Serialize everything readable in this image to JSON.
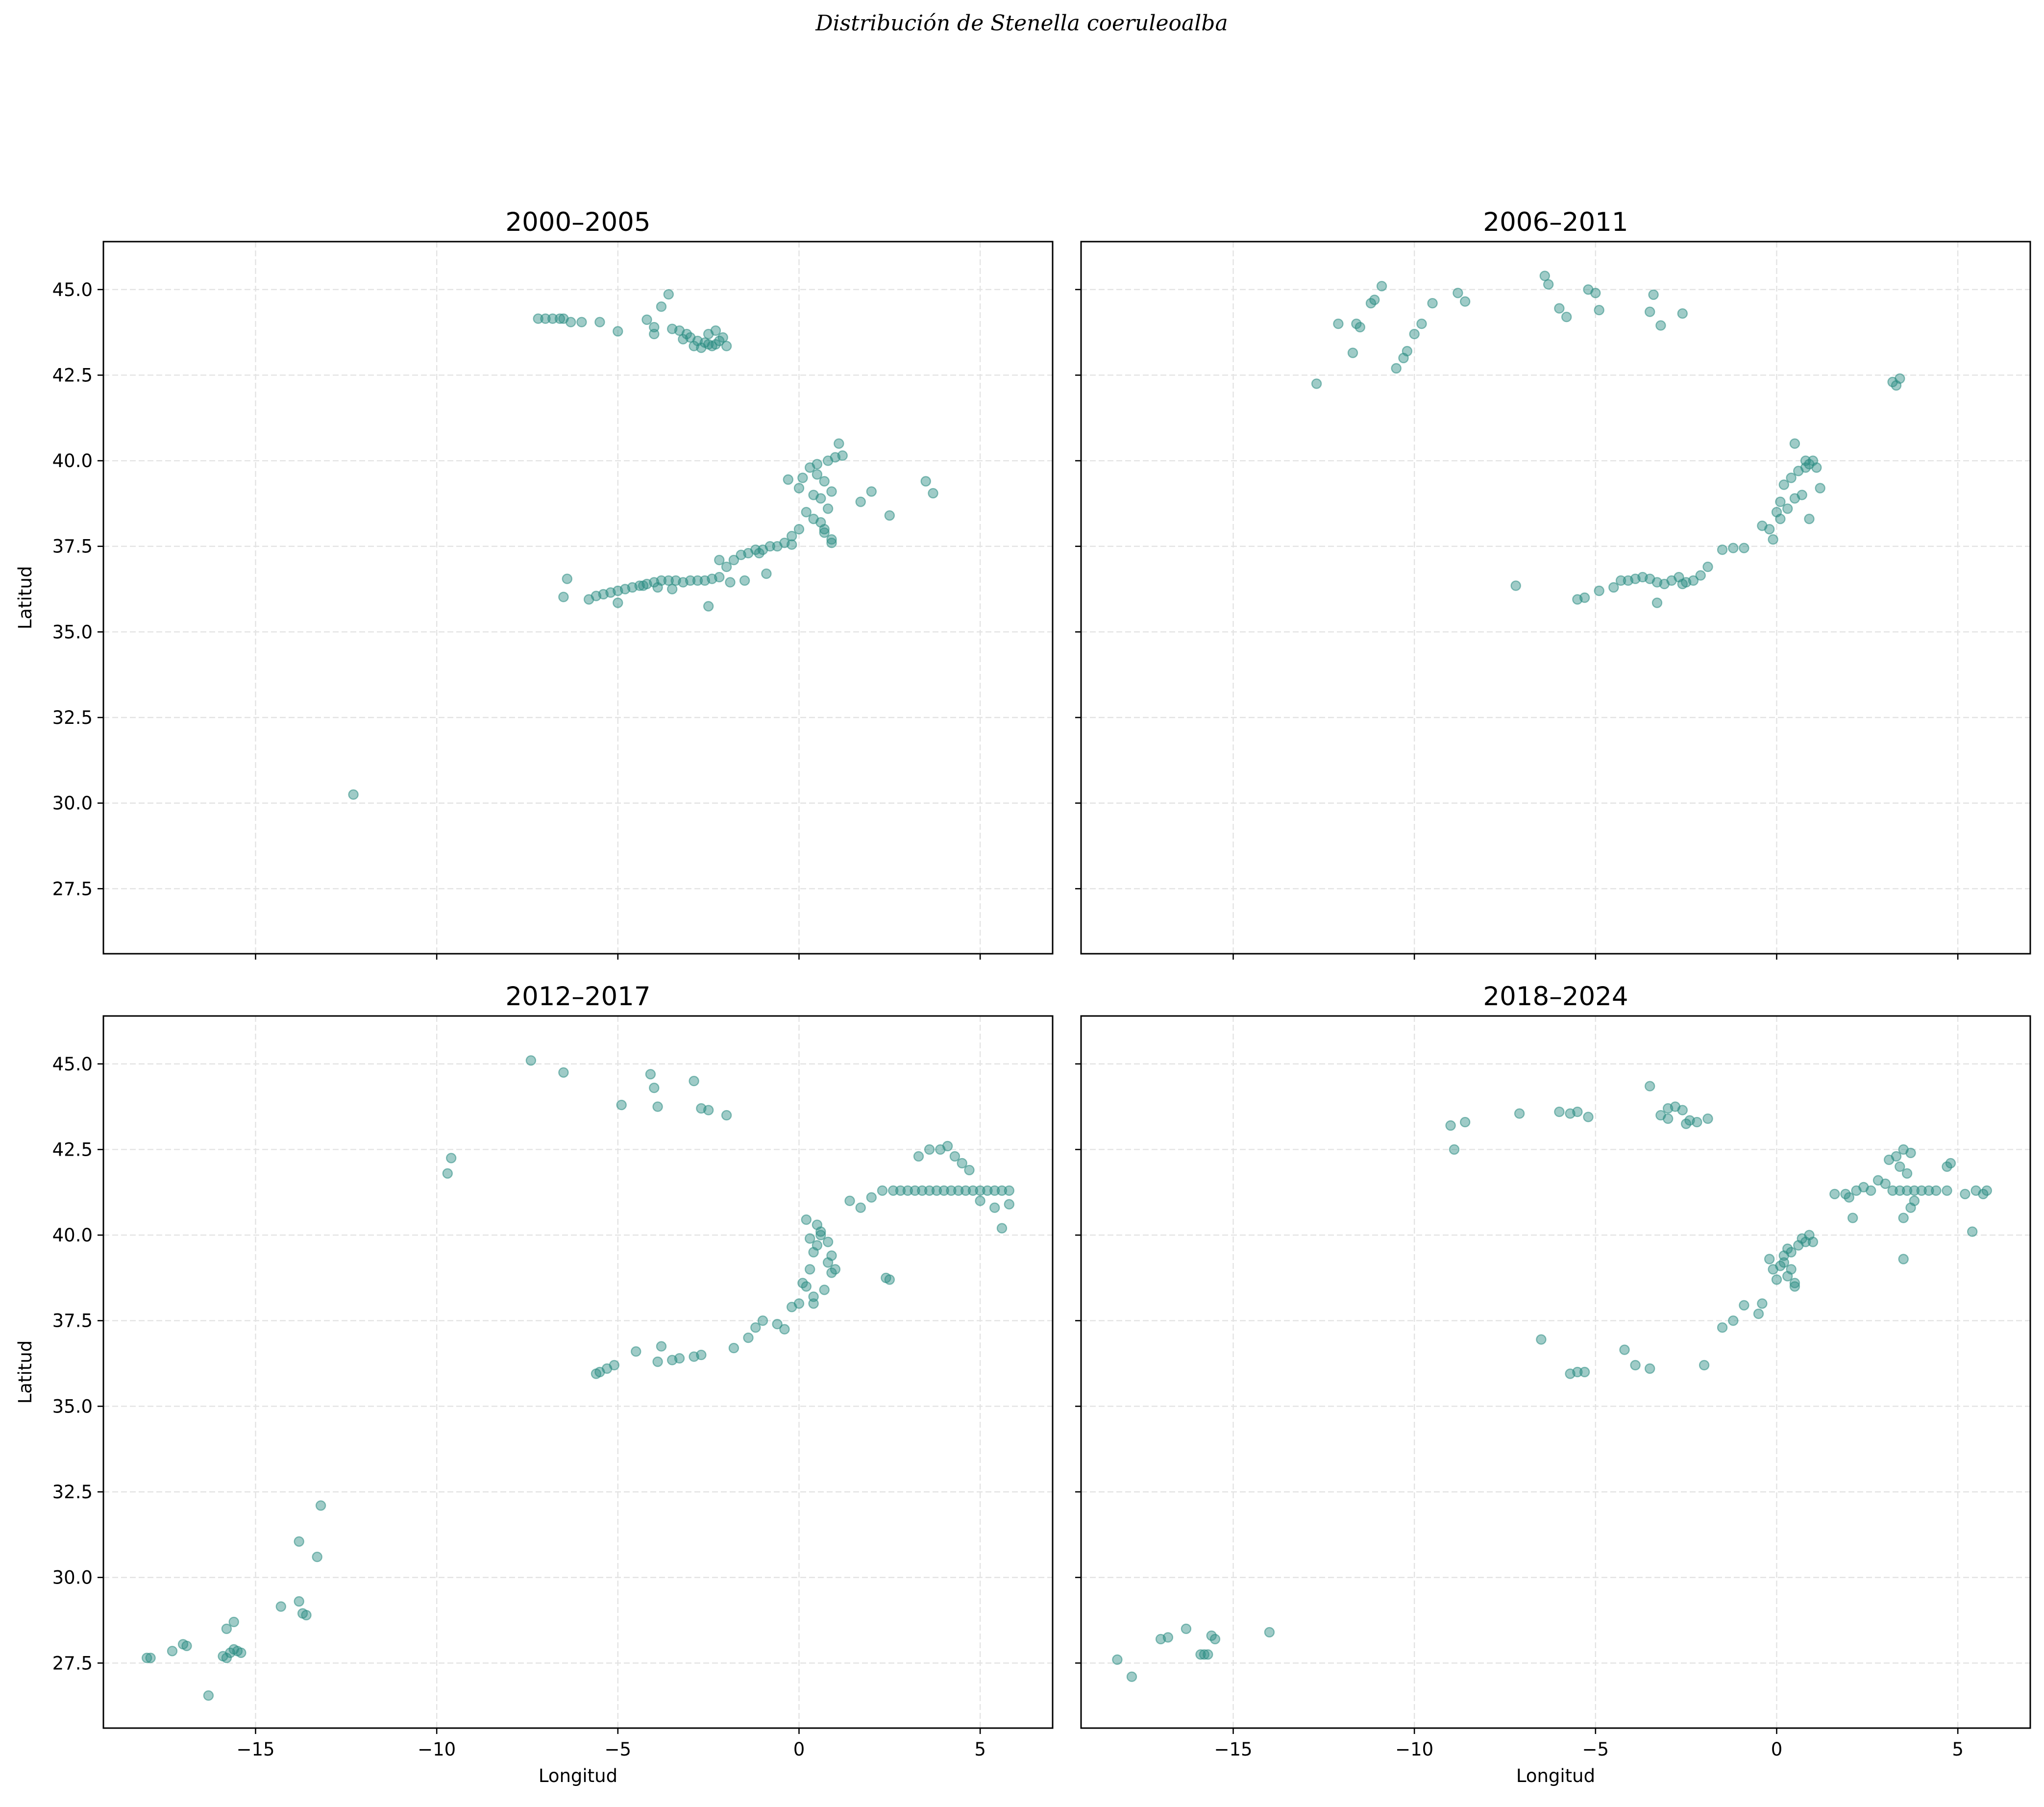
{
  "figure": {
    "title": "Distribución de Stenella coeruleoalba",
    "xlabel": "Longitud",
    "ylabel": "Latitud"
  },
  "colors": {
    "point": "#2a8c82",
    "point_opacity": 0.45,
    "grid": "#e3e3e3",
    "background": "#ffffff"
  },
  "chart_data": [
    {
      "type": "scatter",
      "title": "2000–2005",
      "xlim": [
        -19.2,
        7.0
      ],
      "ylim": [
        25.6,
        46.4
      ],
      "xticks": [
        -15,
        -10,
        -5,
        0,
        5
      ],
      "xtick_labels": [
        "−15",
        "−10",
        "−5",
        "0",
        "5"
      ],
      "yticks": [
        27.5,
        30.0,
        32.5,
        35.0,
        37.5,
        40.0,
        42.5,
        45.0
      ],
      "ytick_labels": [
        "27.5",
        "30.0",
        "32.5",
        "35.0",
        "37.5",
        "40.0",
        "42.5",
        "45.0"
      ],
      "grid": true,
      "x": [
        -7.2,
        -7.0,
        -6.8,
        -6.6,
        -6.5,
        -6.3,
        -6.0,
        -5.5,
        -5.0,
        -4.0,
        -3.6,
        -4.2,
        -3.8,
        -4.0,
        -3.5,
        -3.3,
        -3.1,
        -3.0,
        -2.8,
        -2.6,
        -2.5,
        -2.4,
        -2.3,
        -2.2,
        -2.1,
        -2.9,
        -2.7,
        -2.5,
        -2.3,
        -3.2,
        -2.0,
        -12.3,
        -6.4,
        -6.5,
        -5.8,
        -5.6,
        -5.4,
        -5.2,
        -5.0,
        -4.8,
        -4.6,
        -4.4,
        -4.2,
        -4.0,
        -3.8,
        -3.6,
        -3.4,
        -3.2,
        -3.0,
        -2.8,
        -2.6,
        -2.4,
        -2.2,
        -2.0,
        -1.8,
        -1.6,
        -1.4,
        -1.2,
        -1.0,
        -0.8,
        -0.6,
        -0.4,
        -0.2,
        0.0,
        0.2,
        0.4,
        -0.3,
        0.0,
        0.1,
        0.3,
        0.5,
        0.7,
        0.9,
        0.6,
        0.8,
        0.4,
        0.7,
        0.9,
        0.5,
        0.8,
        1.0,
        1.1,
        1.2,
        0.6,
        0.7,
        0.9,
        2.0,
        1.7,
        2.5,
        3.5,
        3.7,
        -2.5,
        -1.5,
        -1.9,
        -0.9,
        -0.2,
        -5.0,
        -3.5,
        -4.3,
        -3.9,
        -2.2,
        -1.1
      ],
      "y": [
        44.15,
        44.15,
        44.15,
        44.15,
        44.15,
        44.05,
        44.05,
        44.05,
        43.78,
        43.9,
        44.86,
        44.12,
        44.5,
        43.7,
        43.85,
        43.8,
        43.7,
        43.6,
        43.5,
        43.45,
        43.4,
        43.35,
        43.4,
        43.5,
        43.6,
        43.35,
        43.3,
        43.7,
        43.8,
        43.55,
        43.35,
        30.25,
        36.55,
        36.02,
        35.95,
        36.05,
        36.1,
        36.15,
        36.2,
        36.25,
        36.3,
        36.35,
        36.4,
        36.45,
        36.5,
        36.5,
        36.5,
        36.45,
        36.5,
        36.5,
        36.5,
        36.55,
        36.6,
        36.9,
        37.1,
        37.25,
        37.3,
        37.4,
        37.4,
        37.5,
        37.5,
        37.6,
        37.8,
        38.0,
        38.5,
        39.0,
        39.45,
        39.2,
        39.5,
        39.8,
        39.6,
        39.4,
        39.1,
        38.9,
        38.6,
        38.3,
        38.0,
        37.7,
        39.9,
        40.0,
        40.1,
        40.5,
        40.15,
        38.2,
        37.9,
        37.6,
        39.1,
        38.8,
        38.4,
        39.4,
        39.05,
        35.75,
        36.5,
        36.45,
        36.7,
        37.55,
        35.85,
        36.25,
        36.35,
        36.3,
        37.1,
        37.3
      ]
    },
    {
      "type": "scatter",
      "title": "2006–2011",
      "xlim": [
        -19.2,
        7.0
      ],
      "ylim": [
        25.6,
        46.4
      ],
      "xticks": [
        -15,
        -10,
        -5,
        0,
        5
      ],
      "xtick_labels": [
        "−15",
        "−10",
        "−5",
        "0",
        "5"
      ],
      "yticks": [
        27.5,
        30.0,
        32.5,
        35.0,
        37.5,
        40.0,
        42.5,
        45.0
      ],
      "ytick_labels": [
        "27.5",
        "30.0",
        "32.5",
        "35.0",
        "37.5",
        "40.0",
        "42.5",
        "45.0"
      ],
      "grid": true,
      "x": [
        -12.7,
        -12.1,
        -11.6,
        -11.5,
        -11.7,
        -11.2,
        -11.1,
        -10.9,
        -10.5,
        -10.3,
        -10.2,
        -10.0,
        -9.8,
        -9.5,
        -8.8,
        -8.6,
        -6.4,
        -6.3,
        -6.0,
        -5.8,
        -5.2,
        -5.0,
        -4.9,
        -3.5,
        -3.4,
        -3.2,
        -2.6,
        -7.2,
        -5.5,
        -5.3,
        -4.9,
        -4.5,
        -4.3,
        -4.1,
        -3.9,
        -3.7,
        -3.5,
        -3.3,
        -3.1,
        -2.9,
        -2.7,
        -2.5,
        -2.3,
        -2.1,
        -1.9,
        -3.3,
        -2.6,
        -1.5,
        -1.2,
        -0.9,
        -0.4,
        -0.2,
        0.0,
        0.1,
        0.2,
        0.4,
        0.6,
        0.8,
        0.9,
        1.0,
        1.2,
        0.5,
        0.7,
        0.3,
        0.1,
        -0.1,
        0.5,
        0.8,
        1.1,
        0.9,
        3.2,
        3.3,
        3.4
      ],
      "y": [
        42.25,
        44.0,
        44.0,
        43.9,
        43.15,
        44.6,
        44.7,
        45.1,
        42.7,
        43.0,
        43.2,
        43.7,
        44.0,
        44.6,
        44.9,
        44.65,
        45.4,
        45.15,
        44.45,
        44.2,
        45.0,
        44.9,
        44.4,
        44.35,
        44.85,
        43.95,
        44.3,
        36.35,
        35.95,
        36.0,
        36.2,
        36.3,
        36.5,
        36.5,
        36.55,
        36.6,
        36.55,
        36.45,
        36.4,
        36.5,
        36.6,
        36.45,
        36.5,
        36.65,
        36.9,
        35.85,
        36.4,
        37.4,
        37.45,
        37.45,
        38.1,
        38.0,
        38.5,
        38.8,
        39.3,
        39.5,
        39.7,
        39.8,
        39.9,
        40.0,
        39.2,
        38.9,
        39.0,
        38.6,
        38.3,
        37.7,
        40.5,
        40.0,
        39.8,
        38.3,
        42.3,
        42.2,
        42.4
      ]
    },
    {
      "type": "scatter",
      "title": "2012–2017",
      "xlim": [
        -19.2,
        7.0
      ],
      "ylim": [
        25.6,
        46.4
      ],
      "xticks": [
        -15,
        -10,
        -5,
        0,
        5
      ],
      "xtick_labels": [
        "−15",
        "−10",
        "−5",
        "0",
        "5"
      ],
      "yticks": [
        27.5,
        30.0,
        32.5,
        35.0,
        37.5,
        40.0,
        42.5,
        45.0
      ],
      "ytick_labels": [
        "27.5",
        "30.0",
        "32.5",
        "35.0",
        "37.5",
        "40.0",
        "42.5",
        "45.0"
      ],
      "grid": true,
      "x": [
        -18.0,
        -17.9,
        -17.3,
        -17.0,
        -16.9,
        -15.9,
        -15.8,
        -15.7,
        -15.6,
        -15.5,
        -15.4,
        -16.3,
        -15.8,
        -15.6,
        -13.7,
        -13.8,
        -13.8,
        -13.3,
        -13.2,
        -14.3,
        -13.6,
        -9.7,
        -9.6,
        -7.4,
        -6.5,
        -4.9,
        -4.1,
        -4.0,
        -3.9,
        -2.9,
        -2.7,
        -2.5,
        -2.0,
        -5.6,
        -5.5,
        -5.3,
        -5.1,
        -4.5,
        -3.9,
        -3.8,
        -3.5,
        -3.3,
        -2.9,
        -2.7,
        -1.8,
        -1.4,
        -1.2,
        -1.0,
        -0.6,
        -0.4,
        -0.2,
        0.0,
        0.2,
        0.3,
        0.4,
        0.5,
        0.6,
        0.8,
        0.9,
        1.0,
        0.1,
        0.4,
        0.7,
        0.9,
        0.5,
        0.2,
        0.6,
        0.3,
        0.8,
        0.4,
        1.4,
        1.7,
        2.0,
        2.3,
        2.6,
        2.8,
        3.0,
        3.2,
        3.4,
        3.6,
        3.8,
        4.0,
        4.2,
        4.4,
        4.6,
        4.8,
        5.0,
        5.2,
        5.4,
        5.6,
        5.8,
        3.3,
        3.6,
        3.9,
        4.1,
        4.3,
        4.5,
        4.7,
        5.0,
        5.4,
        5.8,
        5.6,
        2.4,
        2.5
      ],
      "y": [
        27.65,
        27.65,
        27.85,
        28.05,
        28.0,
        27.7,
        27.65,
        27.8,
        27.9,
        27.85,
        27.8,
        26.55,
        28.5,
        28.7,
        28.95,
        29.3,
        31.05,
        30.6,
        32.1,
        29.15,
        28.9,
        41.8,
        42.25,
        45.1,
        44.75,
        43.8,
        44.7,
        44.3,
        43.75,
        44.5,
        43.7,
        43.65,
        43.5,
        35.95,
        36.0,
        36.1,
        36.2,
        36.6,
        36.3,
        36.75,
        36.35,
        36.4,
        36.45,
        36.5,
        36.7,
        37.0,
        37.3,
        37.5,
        37.4,
        37.25,
        37.9,
        38.0,
        38.5,
        39.0,
        39.5,
        39.7,
        40.0,
        39.8,
        39.4,
        39.0,
        38.6,
        38.2,
        38.4,
        38.9,
        40.3,
        40.45,
        40.1,
        39.9,
        39.2,
        38.0,
        41.0,
        40.8,
        41.1,
        41.3,
        41.3,
        41.3,
        41.3,
        41.3,
        41.3,
        41.3,
        41.3,
        41.3,
        41.3,
        41.3,
        41.3,
        41.3,
        41.3,
        41.3,
        41.3,
        41.3,
        41.3,
        42.3,
        42.5,
        42.5,
        42.6,
        42.3,
        42.1,
        41.9,
        41.0,
        40.8,
        40.9,
        40.2,
        38.75,
        38.7
      ]
    },
    {
      "type": "scatter",
      "title": "2018–2024",
      "xlim": [
        -19.2,
        7.0
      ],
      "ylim": [
        25.6,
        46.4
      ],
      "xticks": [
        -15,
        -10,
        -5,
        0,
        5
      ],
      "xtick_labels": [
        "−15",
        "−10",
        "−5",
        "0",
        "5"
      ],
      "yticks": [
        27.5,
        30.0,
        32.5,
        35.0,
        37.5,
        40.0,
        42.5,
        45.0
      ],
      "ytick_labels": [
        "27.5",
        "30.0",
        "32.5",
        "35.0",
        "37.5",
        "40.0",
        "42.5",
        "45.0"
      ],
      "grid": true,
      "x": [
        -18.2,
        -17.8,
        -17.0,
        -16.8,
        -16.3,
        -15.9,
        -15.8,
        -15.7,
        -15.6,
        -15.5,
        -14.0,
        -9.0,
        -8.9,
        -8.6,
        -7.1,
        -6.0,
        -5.7,
        -5.5,
        -5.2,
        -3.5,
        -3.2,
        -3.0,
        -2.8,
        -2.6,
        -2.4,
        -2.2,
        -1.9,
        -3.0,
        -2.5,
        -6.5,
        -5.7,
        -5.5,
        -5.3,
        -4.2,
        -3.9,
        -3.5,
        -2.0,
        -1.5,
        -1.2,
        -0.9,
        -0.5,
        -0.4,
        -0.2,
        -0.1,
        0.0,
        0.1,
        0.2,
        0.3,
        0.4,
        0.5,
        0.6,
        0.7,
        0.8,
        0.9,
        1.0,
        0.3,
        0.5,
        0.2,
        0.4,
        1.6,
        1.9,
        2.0,
        2.2,
        2.4,
        2.6,
        2.8,
        3.0,
        3.2,
        3.4,
        3.6,
        3.8,
        4.0,
        4.2,
        4.4,
        4.7,
        5.2,
        5.5,
        5.7,
        5.8,
        3.1,
        3.3,
        3.5,
        3.7,
        3.4,
        3.6,
        4.8,
        4.7,
        3.8,
        3.5,
        3.5,
        5.4,
        3.7,
        2.1
      ],
      "y": [
        27.6,
        27.1,
        28.2,
        28.25,
        28.5,
        27.75,
        27.75,
        27.75,
        28.3,
        28.2,
        28.4,
        43.2,
        42.5,
        43.3,
        43.55,
        43.6,
        43.55,
        43.6,
        43.45,
        44.35,
        43.5,
        43.7,
        43.75,
        43.65,
        43.35,
        43.3,
        43.4,
        43.4,
        43.25,
        36.95,
        35.95,
        36.0,
        36.0,
        36.65,
        36.2,
        36.1,
        36.2,
        37.3,
        37.5,
        37.95,
        37.7,
        38.0,
        39.3,
        39.0,
        38.7,
        39.1,
        39.2,
        39.6,
        39.0,
        38.6,
        39.7,
        39.9,
        39.8,
        40.0,
        39.8,
        38.8,
        38.5,
        39.4,
        39.5,
        41.2,
        41.2,
        41.1,
        41.3,
        41.4,
        41.3,
        41.6,
        41.5,
        41.3,
        41.3,
        41.3,
        41.3,
        41.3,
        41.3,
        41.3,
        41.3,
        41.2,
        41.3,
        41.2,
        41.3,
        42.2,
        42.3,
        42.5,
        42.4,
        42.0,
        41.8,
        42.1,
        42.0,
        41.0,
        40.5,
        39.3,
        40.1,
        40.8,
        40.5
      ]
    }
  ]
}
